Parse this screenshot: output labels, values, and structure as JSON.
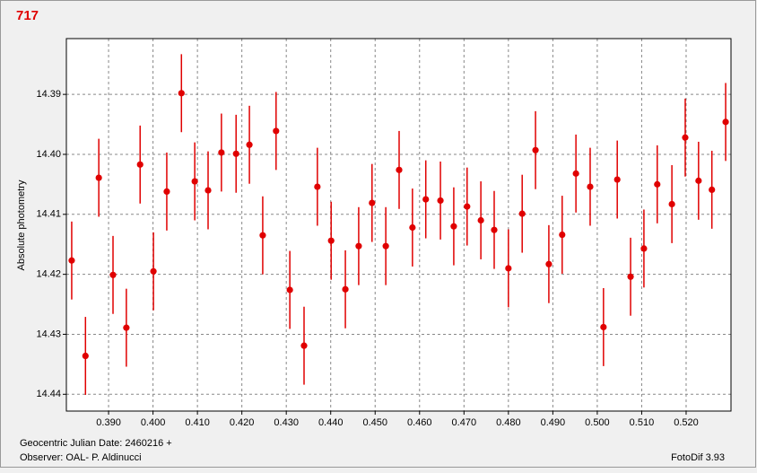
{
  "chart_data": {
    "type": "errorbar-scatter",
    "title": "717",
    "y_label": "Absolute photometry",
    "footer_left": [
      "Geocentric Julian Date: 2460216 +",
      "Observer: OAL- P. Aldinucci"
    ],
    "footer_right": "FotoDif 3.93",
    "color": "#e00000",
    "grid": true,
    "y_inverted": true,
    "xlim": [
      0.3805,
      0.5301
    ],
    "ylim": [
      14.3807,
      14.4428
    ],
    "xticks": [
      {
        "value": 0.39,
        "label": "0.390"
      },
      {
        "value": 0.4,
        "label": "0.400"
      },
      {
        "value": 0.41,
        "label": "0.410"
      },
      {
        "value": 0.42,
        "label": "0.420"
      },
      {
        "value": 0.43,
        "label": "0.430"
      },
      {
        "value": 0.44,
        "label": "0.440"
      },
      {
        "value": 0.45,
        "label": "0.450"
      },
      {
        "value": 0.46,
        "label": "0.460"
      },
      {
        "value": 0.47,
        "label": "0.470"
      },
      {
        "value": 0.48,
        "label": "0.480"
      },
      {
        "value": 0.49,
        "label": "0.490"
      },
      {
        "value": 0.5,
        "label": "0.500"
      },
      {
        "value": 0.51,
        "label": "0.510"
      },
      {
        "value": 0.52,
        "label": "0.520"
      }
    ],
    "yticks": [
      14.39,
      {
        "value": 14.4,
        "label": "14.40"
      },
      14.41,
      14.42,
      14.43,
      14.44
    ],
    "x": [
      0.3817,
      0.3848,
      0.3878,
      0.391,
      0.394,
      0.3971,
      0.4001,
      0.4031,
      0.4064,
      0.4094,
      0.4124,
      0.4154,
      0.4187,
      0.4217,
      0.4247,
      0.4277,
      0.4308,
      0.434,
      0.437,
      0.4401,
      0.4433,
      0.4463,
      0.4493,
      0.4524,
      0.4554,
      0.4584,
      0.4614,
      0.4647,
      0.4677,
      0.4707,
      0.4738,
      0.4768,
      0.48,
      0.4831,
      0.4861,
      0.4891,
      0.4921,
      0.4952,
      0.4984,
      0.5014,
      0.5045,
      0.5075,
      0.5105,
      0.5135,
      0.5168,
      0.5198,
      0.5228,
      0.5258,
      0.5289
    ],
    "values": [
      14.4177,
      14.4336,
      14.4039,
      14.4201,
      14.4289,
      14.4017,
      14.4195,
      14.4062,
      14.3898,
      14.4045,
      14.406,
      14.3997,
      14.3999,
      14.3984,
      14.4135,
      14.3961,
      14.4226,
      14.4319,
      14.4054,
      14.4144,
      14.4225,
      14.4153,
      14.4081,
      14.4153,
      14.4026,
      14.4122,
      14.4075,
      14.4077,
      14.412,
      14.4087,
      14.411,
      14.4126,
      14.419,
      14.4099,
      14.3993,
      14.4183,
      14.4134,
      14.4032,
      14.4054,
      14.4288,
      14.4042,
      14.4204,
      14.4157,
      14.405,
      14.4083,
      14.3972,
      14.4044,
      14.4059,
      14.3946
    ],
    "errors": [
      0.0065,
      0.0065,
      0.0065,
      0.0065,
      0.0065,
      0.0065,
      0.0065,
      0.0065,
      0.0065,
      0.0065,
      0.0065,
      0.0065,
      0.0065,
      0.0065,
      0.0065,
      0.0065,
      0.0065,
      0.0065,
      0.0065,
      0.0065,
      0.0065,
      0.0065,
      0.0065,
      0.0065,
      0.0065,
      0.0065,
      0.0065,
      0.0065,
      0.0065,
      0.0065,
      0.0065,
      0.0065,
      0.0065,
      0.0065,
      0.0065,
      0.0065,
      0.0065,
      0.0065,
      0.0065,
      0.0065,
      0.0065,
      0.0065,
      0.0065,
      0.0065,
      0.0065,
      0.0065,
      0.0065,
      0.0065,
      0.0065
    ]
  }
}
